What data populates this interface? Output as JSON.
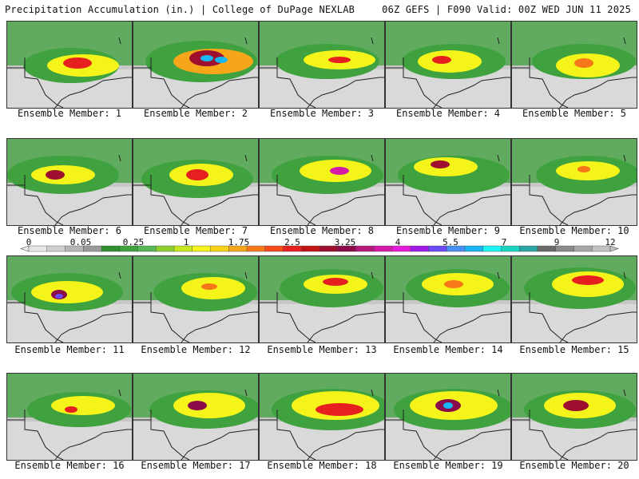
{
  "header": {
    "left": "Precipitation Accumulation (in.) | College of DuPage NEXLAB",
    "right": "06Z GEFS | F090 Valid: 00Z WED JUN 11 2025"
  },
  "colorbar": {
    "labels": [
      "0",
      "0.05",
      "0.25",
      "1",
      "1.75",
      "2.5",
      "3.25",
      "4",
      "5.5",
      "7",
      "9",
      "12"
    ],
    "colors": [
      "#e6e6e6",
      "#cfcfcf",
      "#b5b5b5",
      "#9a9a9a",
      "#2f8f2f",
      "#3fa23f",
      "#58b558",
      "#8fce2f",
      "#c8e61f",
      "#f4f41a",
      "#f7d21a",
      "#f7a61a",
      "#f7781a",
      "#f44a1a",
      "#e61f1f",
      "#c21414",
      "#9e0f2f",
      "#8a0a4a",
      "#b51a7a",
      "#d41aa6",
      "#e61ad9",
      "#a01ae6",
      "#6a4af4",
      "#4a8ff4",
      "#1ab5f4",
      "#1af4f4",
      "#1ad4c2",
      "#2aa6a6",
      "#6a6a6a",
      "#8a8a8a",
      "#a6a6a6",
      "#c2c2c2"
    ]
  },
  "members": [
    {
      "label": "Ensemble Member: 1"
    },
    {
      "label": "Ensemble Member: 2"
    },
    {
      "label": "Ensemble Member: 3"
    },
    {
      "label": "Ensemble Member: 4"
    },
    {
      "label": "Ensemble Member: 5"
    },
    {
      "label": "Ensemble Member: 6"
    },
    {
      "label": "Ensemble Member: 7"
    },
    {
      "label": "Ensemble Member: 8"
    },
    {
      "label": "Ensemble Member: 9"
    },
    {
      "label": "Ensemble Member: 10"
    },
    {
      "label": "Ensemble Member: 11"
    },
    {
      "label": "Ensemble Member: 12"
    },
    {
      "label": "Ensemble Member: 13"
    },
    {
      "label": "Ensemble Member: 14"
    },
    {
      "label": "Ensemble Member: 15"
    },
    {
      "label": "Ensemble Member: 16"
    },
    {
      "label": "Ensemble Member: 17"
    },
    {
      "label": "Ensemble Member: 18"
    },
    {
      "label": "Ensemble Member: 19"
    },
    {
      "label": "Ensemble Member: 20"
    }
  ]
}
